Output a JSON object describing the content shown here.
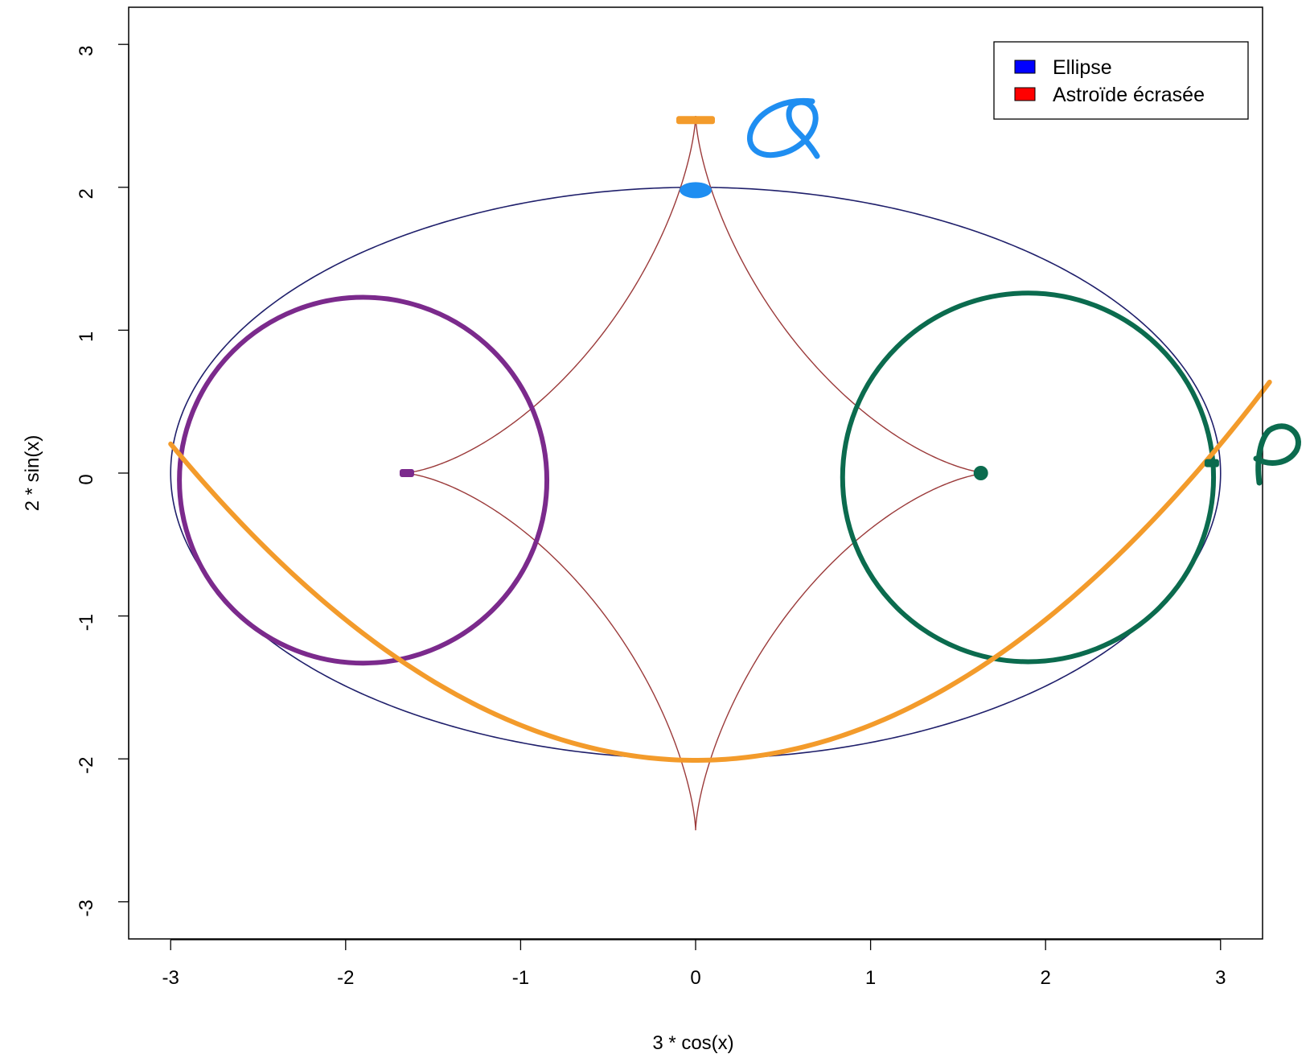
{
  "chart_data": {
    "type": "line",
    "title": "",
    "xlabel": "3 * cos(x)",
    "ylabel": "2 * sin(x)",
    "xlim": [
      -3.24,
      3.24
    ],
    "ylim": [
      -3.26,
      3.26
    ],
    "x_ticks": [
      -3,
      -2,
      -1,
      0,
      1,
      2,
      3
    ],
    "y_ticks": [
      -3,
      -2,
      -1,
      0,
      1,
      2,
      3
    ],
    "grid": false,
    "legend": {
      "placement": "top-right",
      "entries": [
        {
          "label": "Ellipse",
          "color": "#0000ff"
        },
        {
          "label": "Astroïde écrasée",
          "color": "#ff0000"
        }
      ]
    },
    "series": [
      {
        "name": "Ellipse",
        "color": "#1f1f6b",
        "kind": "parametric",
        "equation": {
          "x": "3*cos(t)",
          "y": "2*sin(t)"
        },
        "t_range": [
          0,
          6.2832
        ]
      },
      {
        "name": "Astroïde écrasée",
        "color": "#9b3a3a",
        "kind": "parametric",
        "equation": {
          "x": "1.67*cos(t)^3",
          "y": "2.5*sin(t)^3"
        },
        "t_range": [
          0,
          6.2832
        ]
      }
    ],
    "annotations": {
      "circles": [
        {
          "color": "#7b2a8c",
          "center": [
            -1.9,
            -0.05
          ],
          "radius_x": 1.05,
          "radius_y": 1.28
        },
        {
          "color": "#0b6b4e",
          "center": [
            1.9,
            -0.03
          ],
          "radius_x": 1.06,
          "radius_y": 1.29
        }
      ],
      "parabola": {
        "color": "#f39b2b",
        "vertex": [
          0.0,
          -2.01
        ],
        "a": 0.246,
        "x_range": [
          -3.0,
          3.28
        ]
      },
      "markers": [
        {
          "color": "#f39b2b",
          "shape": "bar",
          "at": [
            0.0,
            2.47
          ]
        },
        {
          "color": "#1f8ef1",
          "shape": "blob",
          "at": [
            0.0,
            1.98
          ]
        },
        {
          "color": "#7b2a8c",
          "shape": "bar",
          "at": [
            -1.65,
            0.0
          ]
        },
        {
          "color": "#0b6b4e",
          "shape": "dot",
          "at": [
            1.63,
            0.0
          ]
        },
        {
          "color": "#0b6b4e",
          "shape": "bar",
          "at": [
            2.95,
            0.07
          ]
        }
      ],
      "handwritten_labels": [
        {
          "text": "Q",
          "color": "#1f8ef1"
        },
        {
          "text": "P",
          "color": "#0b6b4e"
        }
      ]
    }
  }
}
